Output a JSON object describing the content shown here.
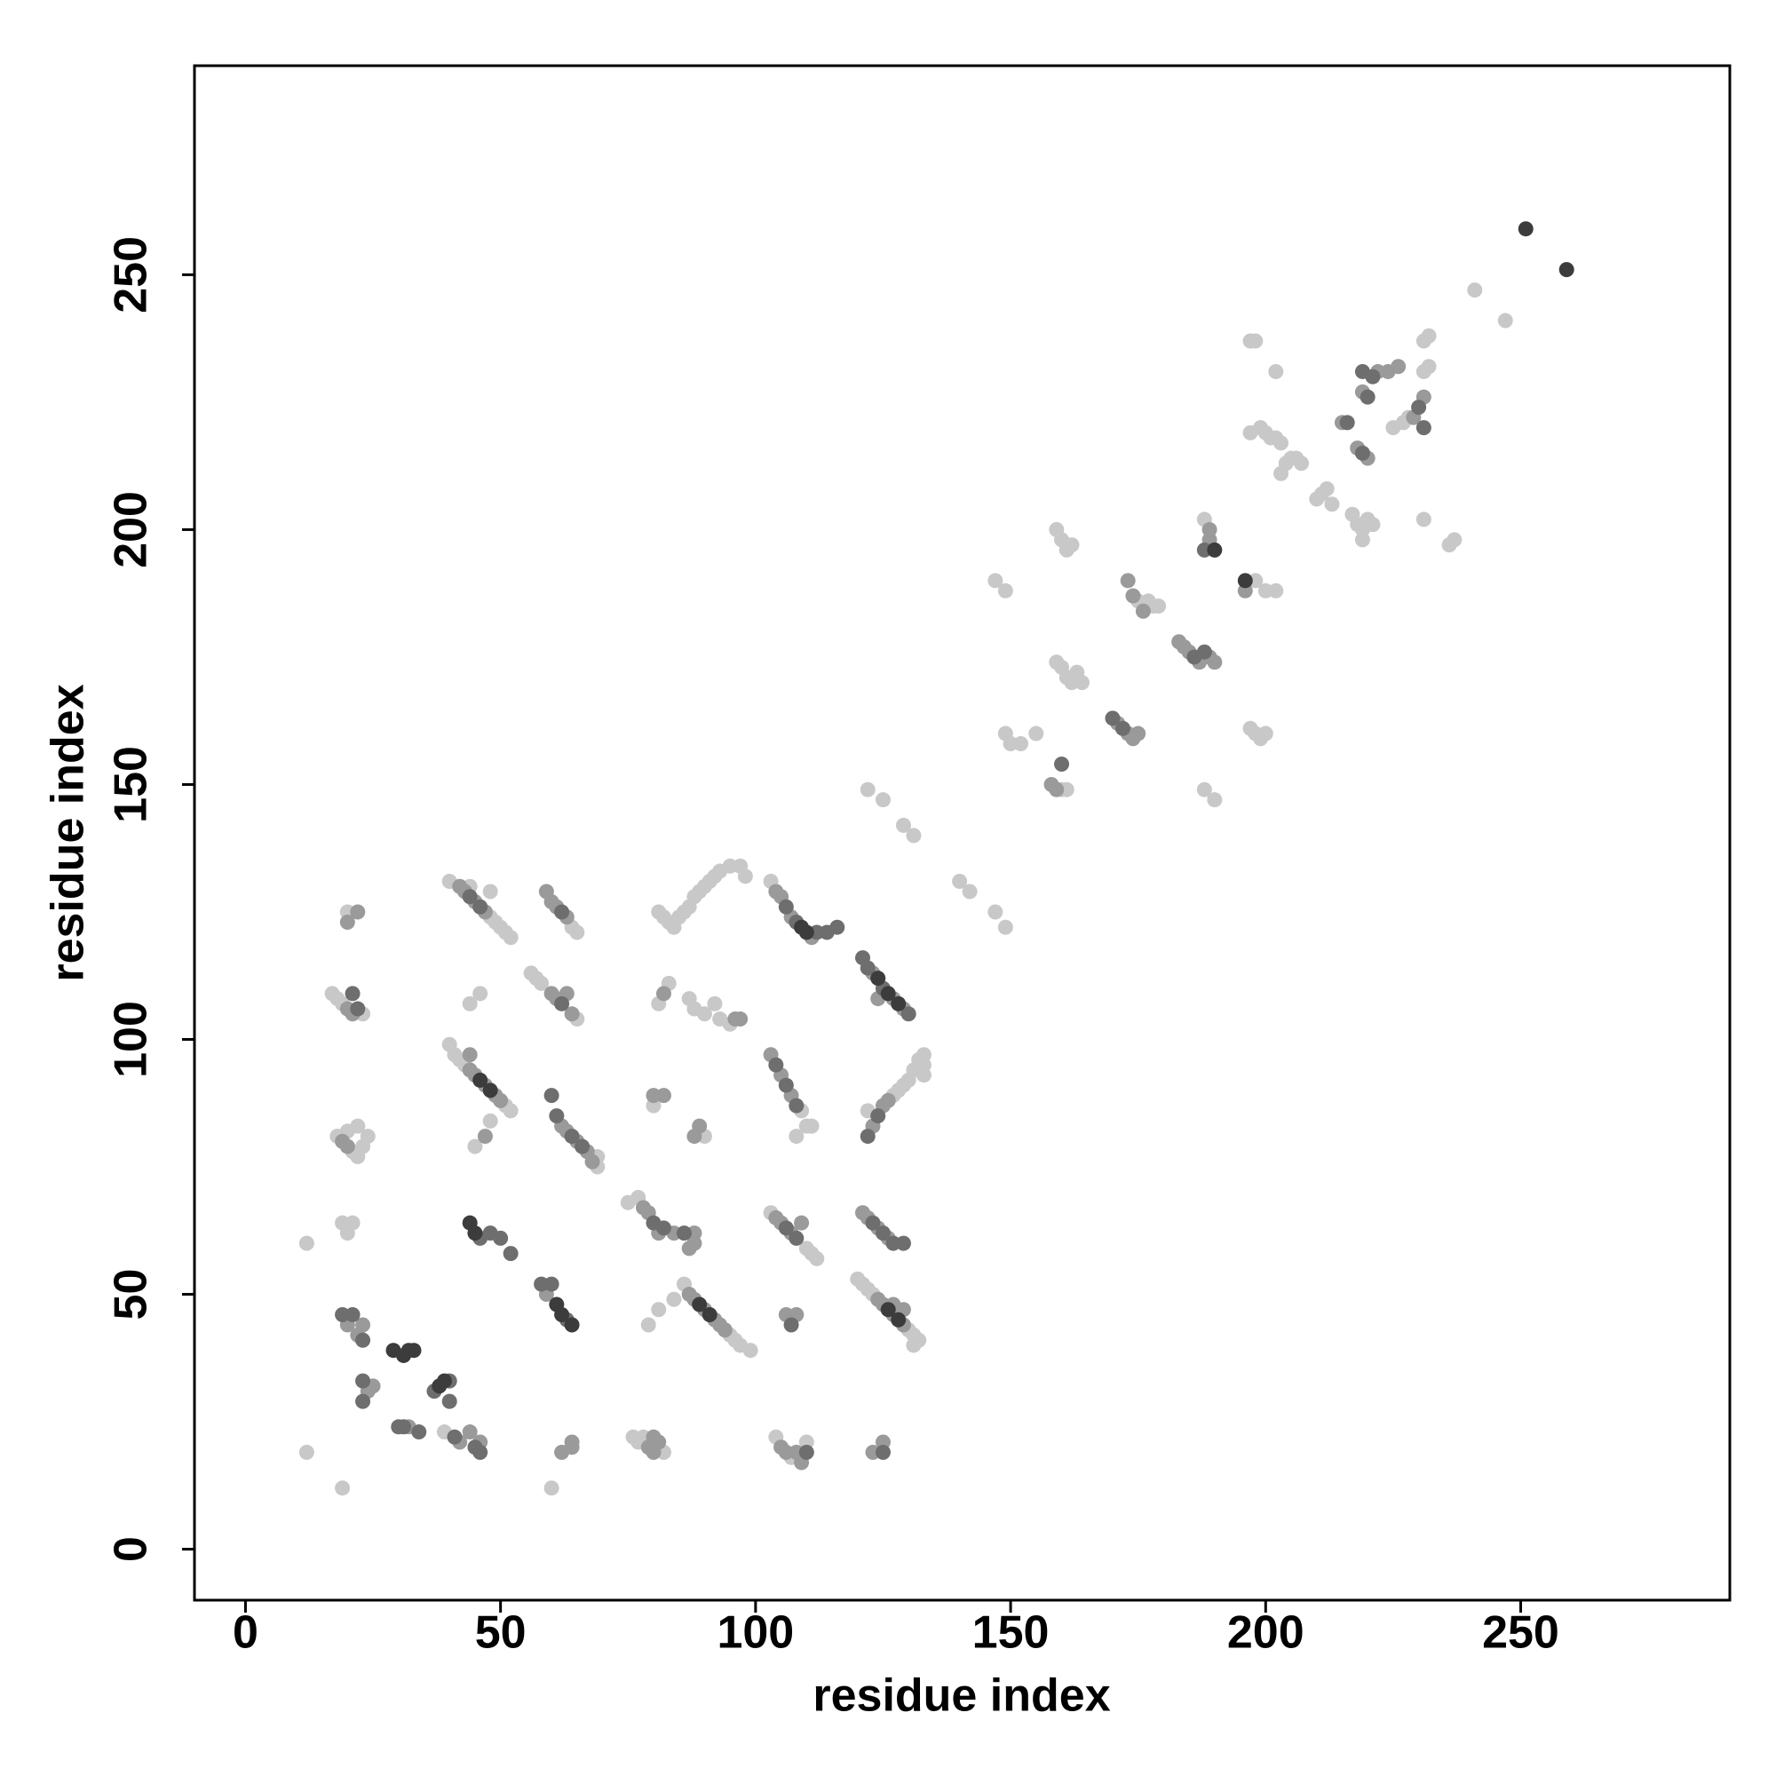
{
  "chart_data": {
    "type": "scatter",
    "xlabel": "residue index",
    "ylabel": "residue index",
    "xlim": [
      -10,
      291
    ],
    "ylim": [
      -10,
      291
    ],
    "xticks": [
      0,
      50,
      100,
      150,
      200,
      250
    ],
    "yticks": [
      0,
      50,
      100,
      150,
      200,
      250
    ],
    "series": [
      {
        "color": "#c8c8c8",
        "x": [
          241,
          247,
          197,
          198,
          202,
          231,
          232,
          231,
          232,
          225,
          227,
          228,
          197,
          199,
          200,
          201,
          202,
          203,
          204,
          205,
          206,
          207,
          203,
          210,
          211,
          212,
          213,
          217,
          218,
          219,
          220,
          221,
          219,
          231,
          236,
          237,
          188,
          198,
          200,
          202,
          175,
          177,
          178,
          179,
          147,
          149,
          159,
          160,
          161,
          162,
          163,
          164,
          159,
          160,
          161,
          162,
          197,
          198,
          199,
          200,
          149,
          150,
          152,
          155,
          160,
          161,
          188,
          190,
          122,
          125,
          129,
          131,
          140,
          142,
          147,
          149,
          12,
          12,
          19,
          60,
          17,
          18,
          19,
          20,
          18,
          21,
          22,
          23,
          24,
          22,
          20,
          19,
          20,
          21,
          40,
          44,
          48,
          48,
          49,
          50,
          51,
          52,
          40,
          41,
          42,
          43,
          51,
          52,
          48,
          45,
          44,
          46,
          56,
          57,
          58,
          65,
          65,
          64,
          69,
          69,
          75,
          77,
          76,
          77,
          78,
          82,
          81,
          82,
          83,
          84,
          85,
          86,
          87,
          88,
          89,
          90,
          91,
          92,
          93,
          95,
          97,
          98,
          81,
          83,
          87,
          88,
          90,
          92,
          93,
          95,
          80,
          90,
          79,
          81,
          84,
          86,
          95,
          96,
          97,
          99,
          103,
          103,
          110,
          111,
          112,
          104,
          107,
          110,
          109,
          108,
          110,
          111,
          127,
          128,
          129,
          130,
          131,
          132,
          133,
          133,
          133,
          122,
          120,
          121,
          122,
          123,
          130,
          131,
          132,
          131,
          23,
          39
        ],
        "y": [
          247,
          241,
          237,
          237,
          231,
          237,
          238,
          231,
          232,
          220,
          221,
          222,
          219,
          220,
          219,
          218,
          218,
          217,
          213,
          214,
          214,
          213,
          211,
          206,
          207,
          208,
          205,
          203,
          201,
          200,
          202,
          201,
          198,
          202,
          197,
          198,
          202,
          190,
          188,
          188,
          186,
          186,
          185,
          185,
          190,
          188,
          174,
          173,
          171,
          170,
          172,
          170,
          200,
          198,
          196,
          197,
          161,
          160,
          159,
          160,
          160,
          158,
          158,
          160,
          149,
          149,
          149,
          147,
          149,
          147,
          142,
          140,
          131,
          129,
          125,
          122,
          60,
          19,
          12,
          12,
          109,
          108,
          107,
          125,
          81,
          78,
          77,
          79,
          81,
          83,
          82,
          64,
          62,
          64,
          131,
          130,
          129,
          124,
          123,
          122,
          121,
          120,
          99,
          97,
          96,
          95,
          87,
          86,
          84,
          79,
          107,
          109,
          113,
          112,
          111,
          104,
          121,
          122,
          77,
          75,
          68,
          69,
          22,
          21,
          22,
          19,
          125,
          124,
          123,
          122,
          124,
          125,
          126,
          128,
          129,
          130,
          131,
          132,
          133,
          134,
          134,
          132,
          107,
          111,
          108,
          106,
          105,
          107,
          104,
          103,
          87,
          81,
          44,
          47,
          49,
          52,
          42,
          41,
          40,
          39,
          131,
          66,
          59,
          58,
          57,
          22,
          18,
          21,
          86,
          81,
          83,
          83,
          89,
          90,
          91,
          92,
          94,
          96,
          97,
          95,
          93,
          86,
          53,
          52,
          51,
          50,
          43,
          42,
          41,
          40,
          105,
          23
        ]
      },
      {
        "color": "#9a9a9a",
        "x": [
          42,
          43,
          45,
          47,
          60,
          61,
          63,
          59,
          63,
          60,
          61,
          64,
          44,
          45,
          47,
          49,
          50,
          44,
          47,
          59,
          62,
          63,
          65,
          67,
          68,
          78,
          79,
          81,
          84,
          88,
          88,
          87,
          80,
          82,
          89,
          88,
          87,
          88,
          90,
          92,
          93,
          94,
          104,
          105,
          107,
          111,
          123,
          127,
          129,
          124,
          123,
          125,
          126,
          103,
          105,
          107,
          104,
          105,
          107,
          109,
          121,
          122,
          124,
          126,
          124,
          125,
          127,
          129,
          127,
          129,
          106,
          108,
          105,
          106,
          108,
          109,
          62,
          64,
          64,
          42,
          44,
          46,
          22,
          23,
          20,
          24,
          25,
          32,
          21,
          20,
          22,
          20,
          171,
          173,
          174,
          175,
          183,
          184,
          185,
          187,
          189,
          190,
          173,
          174,
          176,
          158,
          159,
          215,
          218,
          220,
          229,
          231,
          222,
          224,
          226,
          219,
          189,
          189,
          196,
          123,
          125,
          96,
          97,
          82,
          80,
          81,
          79,
          80,
          19,
          20
        ],
        "y": [
          130,
          129,
          127,
          125,
          127,
          126,
          124,
          129,
          109,
          109,
          108,
          105,
          94,
          93,
          91,
          89,
          88,
          97,
          81,
          50,
          83,
          82,
          80,
          78,
          76,
          67,
          66,
          62,
          62,
          60,
          62,
          59,
          89,
          89,
          83,
          81,
          50,
          49,
          47,
          45,
          44,
          43,
          129,
          128,
          124,
          120,
          113,
          108,
          106,
          108,
          83,
          87,
          88,
          97,
          93,
          89,
          65,
          64,
          62,
          64,
          66,
          65,
          63,
          61,
          49,
          48,
          46,
          44,
          48,
          47,
          46,
          46,
          20,
          19,
          19,
          17,
          19,
          20,
          21,
          21,
          23,
          21,
          42,
          44,
          44,
          31,
          32,
          24,
          105,
          106,
          125,
          123,
          162,
          160,
          159,
          160,
          178,
          177,
          176,
          174,
          175,
          174,
          190,
          187,
          184,
          150,
          149,
          221,
          216,
          214,
          222,
          226,
          231,
          231,
          232,
          227,
          200,
          198,
          188,
          19,
          21,
          104,
          104,
          109,
          22,
          21,
          20,
          19,
          80,
          79
        ]
      },
      {
        "color": "#6e6e6e",
        "x": [
          30,
          31,
          34,
          37,
          40,
          23,
          23,
          46,
          48,
          50,
          52,
          58,
          60,
          63,
          21,
          19,
          62,
          44,
          46,
          62,
          60,
          61,
          64,
          66,
          80,
          82,
          86,
          106,
          108,
          112,
          114,
          116,
          121,
          122,
          125,
          130,
          123,
          125,
          127,
          129,
          122,
          124,
          104,
          106,
          108,
          106,
          108,
          107,
          110,
          46,
          125,
          170,
          172,
          186,
          188,
          188,
          160,
          216,
          219,
          230,
          231,
          220,
          219,
          221,
          22,
          21,
          23,
          41,
          45,
          40
        ],
        "y": [
          24,
          24,
          23,
          31,
          33,
          29,
          33,
          61,
          62,
          61,
          58,
          52,
          52,
          45,
          46,
          46,
          125,
          128,
          126,
          107,
          89,
          85,
          81,
          79,
          64,
          63,
          62,
          126,
          123,
          121,
          121,
          122,
          116,
          114,
          110,
          105,
          64,
          62,
          60,
          60,
          81,
          85,
          95,
          91,
          87,
          63,
          61,
          44,
          19,
          19,
          19,
          163,
          161,
          175,
          176,
          196,
          154,
          221,
          215,
          224,
          220,
          226,
          231,
          230,
          106,
          109,
          41,
          22,
          20,
          29
        ]
      },
      {
        "color": "#3c3c3c",
        "x": [
          251,
          259,
          190,
          196,
          29,
          31,
          32,
          33,
          38,
          39,
          44,
          45,
          61,
          62,
          64,
          110,
          109,
          124,
          126,
          128,
          89,
          91,
          126,
          128,
          46,
          48
        ],
        "y": [
          259,
          251,
          196,
          190,
          39,
          38,
          39,
          39,
          32,
          33,
          64,
          62,
          48,
          46,
          44,
          121,
          122,
          112,
          109,
          107,
          48,
          46,
          47,
          45,
          92,
          90
        ]
      }
    ]
  }
}
